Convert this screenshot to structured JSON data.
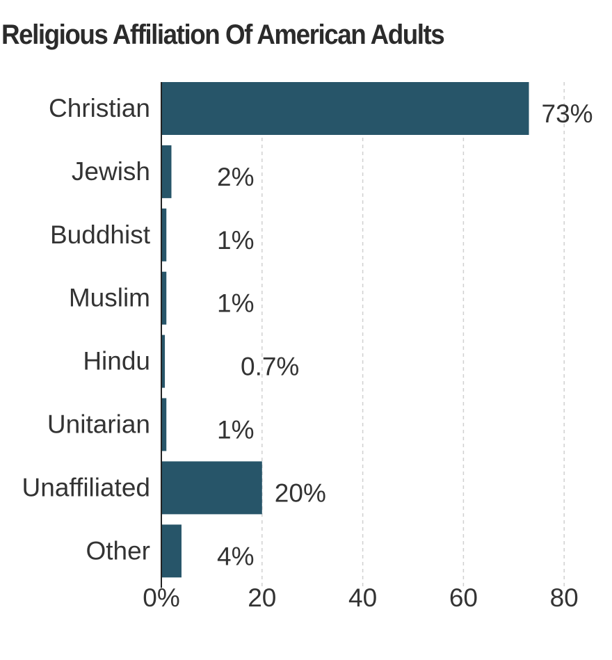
{
  "chart_data": {
    "type": "bar",
    "orientation": "horizontal",
    "title": "Religious Affiliation Of American Adults",
    "categories": [
      "Christian",
      "Jewish",
      "Buddhist",
      "Muslim",
      "Hindu",
      "Unitarian",
      "Unaffiliated",
      "Other"
    ],
    "values": [
      73,
      2,
      1,
      1,
      0.7,
      1,
      20,
      4
    ],
    "data_labels": [
      "73%",
      "2%",
      "1%",
      "1%",
      "0.7%",
      "1%",
      "20%",
      "4%"
    ],
    "x_ticks": [
      "0%",
      "20",
      "40",
      "60",
      "80"
    ],
    "xlim": [
      0,
      80
    ],
    "grid": true,
    "bar_color": "#275569"
  }
}
